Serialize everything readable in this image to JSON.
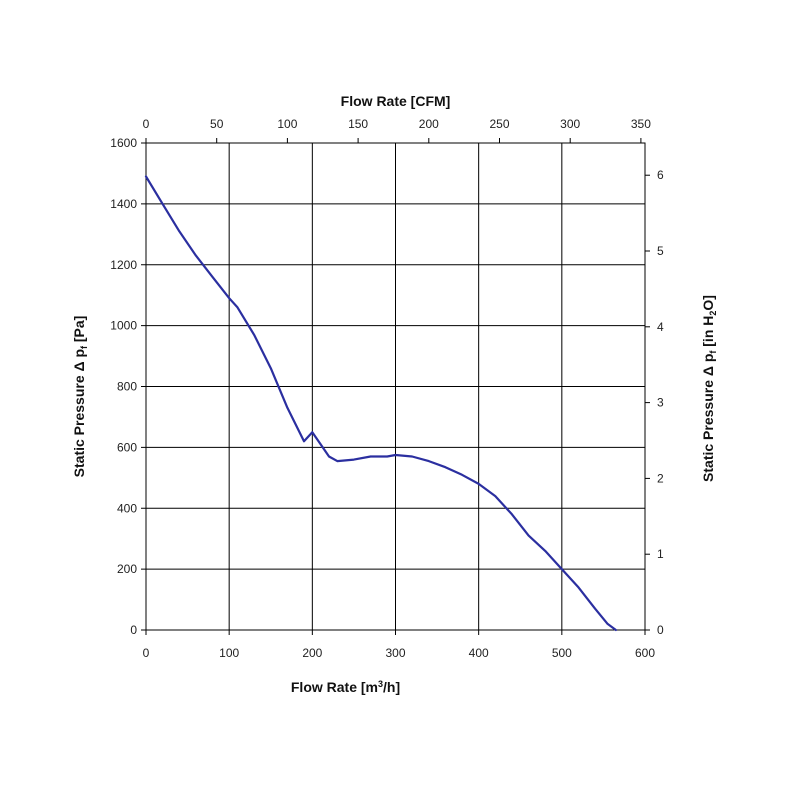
{
  "chart_data": {
    "type": "line",
    "title": "",
    "top_axis": {
      "label": "Flow Rate [CFM]",
      "ticks": [
        0,
        50,
        100,
        150,
        200,
        250,
        300,
        350
      ],
      "range": [
        0,
        352.9
      ]
    },
    "bottom_axis": {
      "label_main": "Flow Rate [m",
      "label_sup": "3",
      "label_end": "/h]",
      "ticks": [
        0,
        100,
        200,
        300,
        400,
        500,
        600
      ],
      "range": [
        0,
        600
      ]
    },
    "left_axis": {
      "label_main": "Static Pressure Δ p",
      "label_sub": "f",
      "label_end": " [Pa]",
      "ticks": [
        0,
        200,
        400,
        600,
        800,
        1000,
        1200,
        1400,
        1600
      ],
      "range": [
        0,
        1600
      ]
    },
    "right_axis": {
      "label_main": "Static Pressure Δ p",
      "label_sub": "f",
      "label_mid": " [in H",
      "label_sub2": "2",
      "label_end": "O]",
      "ticks": [
        0,
        1,
        2,
        3,
        4,
        5,
        6
      ],
      "range": [
        0,
        6.425
      ]
    },
    "grid": true,
    "series": [
      {
        "color": "#2b2fa0",
        "x": [
          0,
          20,
          40,
          60,
          80,
          100,
          110,
          130,
          150,
          170,
          190,
          200,
          210,
          220,
          230,
          250,
          270,
          290,
          300,
          320,
          340,
          360,
          380,
          400,
          420,
          440,
          460,
          480,
          500,
          520,
          540,
          555,
          565
        ],
        "y": [
          1490,
          1400,
          1310,
          1230,
          1160,
          1090,
          1060,
          970,
          860,
          730,
          620,
          650,
          610,
          570,
          555,
          560,
          570,
          570,
          575,
          570,
          555,
          535,
          510,
          480,
          440,
          380,
          310,
          260,
          200,
          140,
          70,
          20,
          0
        ]
      }
    ]
  }
}
